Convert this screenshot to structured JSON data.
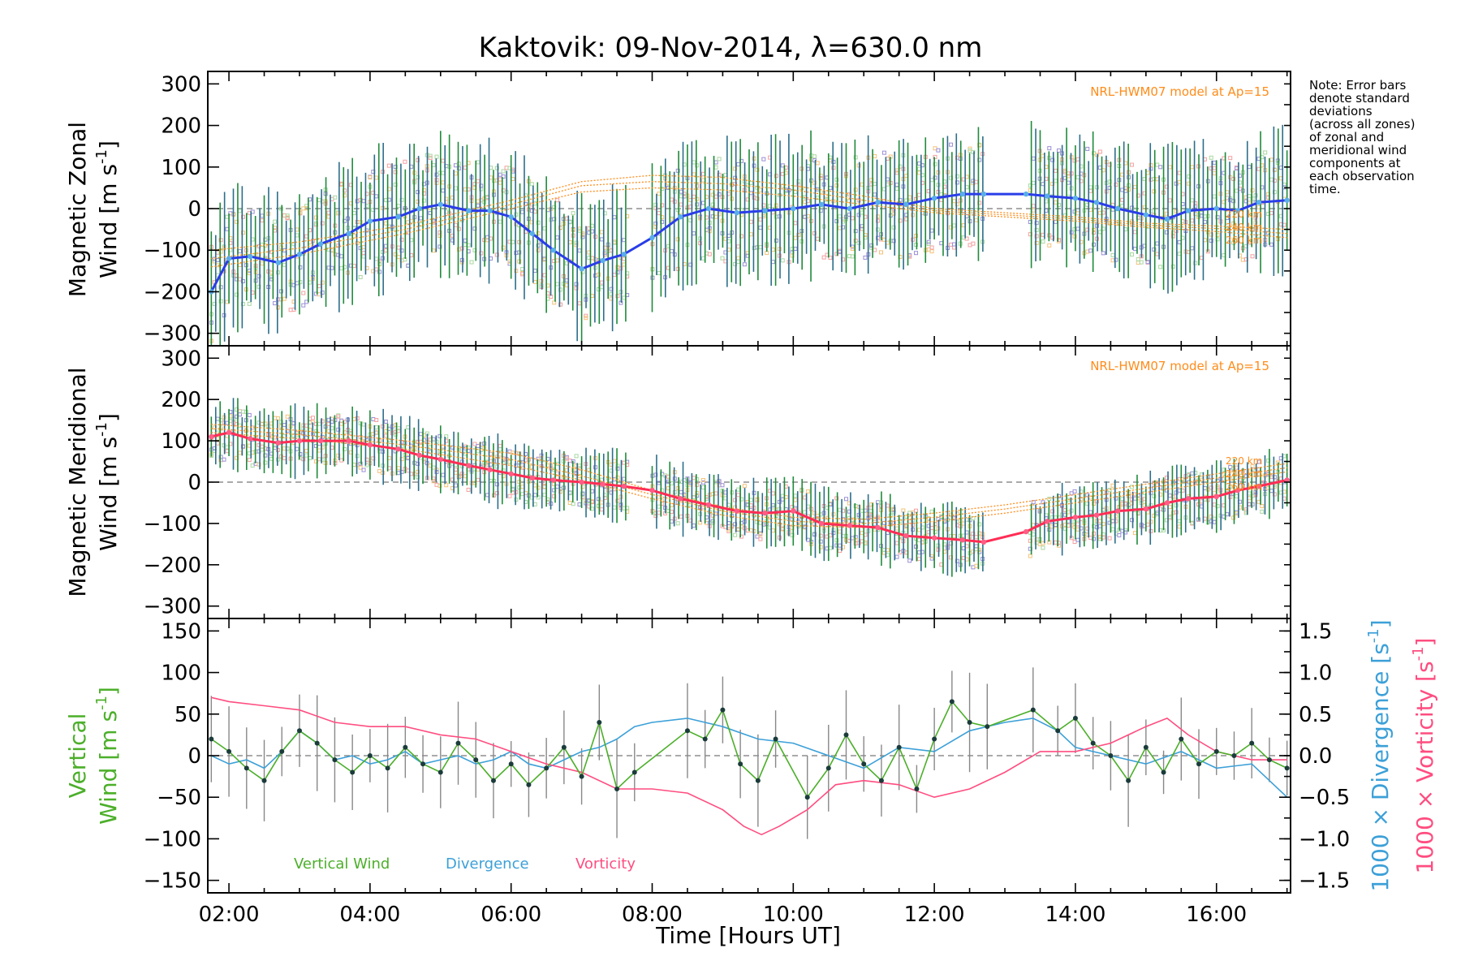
{
  "title": "Kaktovik: 09-Nov-2014, λ=630.0 nm",
  "note": [
    "Note: Error bars",
    "denote standard",
    "deviations",
    "(across all zones)",
    "of zonal and",
    "meridional wind",
    "components at",
    "each observation",
    "time."
  ],
  "x_axis": {
    "label": "Time [Hours UT]",
    "range": [
      1.7,
      17.05
    ],
    "ticks": [
      2,
      4,
      6,
      8,
      10,
      12,
      14,
      16
    ],
    "tick_labels": [
      "02:00",
      "04:00",
      "06:00",
      "08:00",
      "10:00",
      "12:00",
      "14:00",
      "16:00"
    ]
  },
  "colors": {
    "zonal_line": "#2a3de8",
    "zonal_points": "#5aaee8",
    "meridional_line": "#ff2d55",
    "meridional_points": "#ff5d85",
    "errorbar_a": "#2c6e8a",
    "errorbar_b": "#1f8a3a",
    "model": "#ff8c1a",
    "zone_a": "#9b8fd6",
    "zone_b": "#f4c27a",
    "zone_c": "#f4a0a0",
    "zone_d": "#a8d8a0",
    "vertical": "#4caf2a",
    "divergence": "#3ca0d8",
    "vorticity": "#ff4d80",
    "vertical_err": "#888888"
  },
  "panels": {
    "zonal": {
      "ylabel_line1": "Magnetic Zonal",
      "ylabel_line2": "Wind [m s",
      "ylabel_sup": "-1",
      "ylabel_end": "]",
      "yticks": [
        300,
        200,
        100,
        0,
        -100,
        -200,
        -300
      ],
      "tick_labels": [
        "300",
        "200",
        "100",
        "0",
        "−100",
        "−200",
        "−300"
      ],
      "model_label": "NRL-HWM07 model at Ap=15",
      "altitude_labels": [
        "220 km",
        "240 km",
        "260 km"
      ]
    },
    "meridional": {
      "ylabel_line1": "Magnetic Meridional",
      "ylabel_line2": "Wind [m s",
      "ylabel_sup": "-1",
      "ylabel_end": "]",
      "yticks": [
        300,
        200,
        100,
        0,
        -100,
        -200,
        -300
      ],
      "tick_labels": [
        "300",
        "200",
        "100",
        "0",
        "−100",
        "−200",
        "−300"
      ],
      "model_label": "NRL-HWM07 model at Ap=15",
      "altitude_labels": [
        "220 km",
        "240 km",
        "260 km"
      ]
    },
    "vertical": {
      "ylabel_line1": "Vertical",
      "ylabel_line2": "Wind [m s",
      "ylabel_sup": "-1",
      "ylabel_end": "]",
      "yticks": [
        150,
        100,
        50,
        0,
        -50,
        -100,
        -150
      ],
      "tick_labels": [
        "150",
        "100",
        "50",
        "0",
        "−50",
        "−100",
        "−150"
      ],
      "right_ticks": [
        1.5,
        1.0,
        0.5,
        0.0,
        -0.5,
        -1.0,
        -1.5
      ],
      "right_tick_labels": [
        "1.5",
        "1.0",
        "0.5",
        "0.0",
        "−0.5",
        "−1.0",
        "−1.5"
      ],
      "right_label_div": "1000 × Divergence [s",
      "right_label_vort": "1000 × Vorticity [s",
      "right_label_sup": "-1",
      "right_label_end": "]",
      "legend": [
        "Vertical Wind",
        "Divergence",
        "Vorticity"
      ]
    }
  },
  "chart_data": [
    {
      "type": "line",
      "name": "zonal",
      "ylim": [
        -330,
        330
      ],
      "x": [
        1.75,
        2.0,
        2.3,
        2.7,
        3.0,
        3.3,
        3.7,
        4.0,
        4.4,
        4.7,
        5.0,
        5.4,
        5.7,
        6.0,
        6.3,
        6.6,
        7.0,
        7.3,
        7.6,
        8.0,
        8.4,
        8.8,
        9.2,
        9.6,
        10.0,
        10.4,
        10.8,
        11.2,
        11.6,
        12.0,
        12.4,
        12.7,
        13.3,
        13.6,
        14.0,
        14.3,
        14.6,
        15.0,
        15.3,
        15.6,
        16.0,
        16.3,
        16.6,
        17.0
      ],
      "y": [
        -200,
        -120,
        -115,
        -130,
        -110,
        -85,
        -60,
        -30,
        -20,
        0,
        10,
        -5,
        -5,
        -20,
        -60,
        -100,
        -145,
        -125,
        -110,
        -70,
        -20,
        0,
        -10,
        -5,
        0,
        10,
        0,
        15,
        10,
        25,
        35,
        35,
        35,
        30,
        25,
        15,
        0,
        -15,
        -25,
        -5,
        0,
        -5,
        15,
        20
      ]
    },
    {
      "type": "line",
      "name": "meridional",
      "ylim": [
        -330,
        330
      ],
      "x": [
        1.75,
        2.0,
        2.3,
        2.7,
        3.0,
        3.3,
        3.7,
        4.0,
        4.4,
        4.7,
        5.0,
        5.4,
        5.7,
        6.0,
        6.3,
        6.6,
        7.0,
        7.3,
        7.6,
        8.0,
        8.4,
        8.8,
        9.2,
        9.6,
        10.0,
        10.4,
        10.8,
        11.2,
        11.6,
        12.0,
        12.4,
        12.7,
        13.3,
        13.6,
        14.0,
        14.3,
        14.6,
        15.0,
        15.3,
        15.6,
        16.0,
        16.3,
        16.6,
        17.0
      ],
      "y": [
        110,
        120,
        105,
        95,
        100,
        100,
        100,
        90,
        80,
        65,
        55,
        40,
        30,
        20,
        10,
        5,
        0,
        -5,
        -10,
        -20,
        -40,
        -55,
        -70,
        -75,
        -70,
        -100,
        -105,
        -110,
        -130,
        -135,
        -140,
        -145,
        -120,
        -95,
        -85,
        -80,
        -70,
        -65,
        -50,
        -40,
        -35,
        -20,
        -10,
        5
      ]
    },
    {
      "type": "line",
      "name": "vertical",
      "ylim": [
        -165,
        165
      ],
      "x": [
        1.75,
        2.0,
        2.25,
        2.5,
        2.75,
        3.0,
        3.25,
        3.5,
        3.75,
        4.0,
        4.25,
        4.5,
        4.75,
        5.0,
        5.25,
        5.5,
        5.75,
        6.0,
        6.25,
        6.5,
        6.75,
        7.0,
        7.25,
        7.5,
        7.75,
        8.5,
        8.75,
        9.0,
        9.25,
        9.5,
        9.75,
        10.2,
        10.5,
        10.75,
        11.0,
        11.25,
        11.5,
        11.75,
        12.0,
        12.25,
        12.5,
        12.75,
        13.4,
        13.75,
        14.0,
        14.25,
        14.5,
        14.75,
        15.0,
        15.25,
        15.5,
        15.75,
        16.0,
        16.25,
        16.5,
        16.75,
        17.0
      ],
      "y": [
        20,
        5,
        -15,
        -30,
        5,
        30,
        15,
        -5,
        -20,
        0,
        -15,
        10,
        -10,
        -20,
        15,
        -5,
        -30,
        -10,
        -35,
        -15,
        10,
        -25,
        40,
        -40,
        -20,
        30,
        20,
        55,
        -10,
        -30,
        20,
        -50,
        -15,
        25,
        -10,
        -30,
        10,
        -40,
        20,
        65,
        40,
        35,
        55,
        30,
        45,
        15,
        0,
        -30,
        10,
        -20,
        20,
        -10,
        5,
        0,
        15,
        -5,
        -15
      ]
    },
    {
      "type": "line",
      "name": "divergence",
      "ylim": [
        -1.65,
        1.65
      ],
      "x": [
        1.75,
        2.0,
        2.25,
        2.5,
        2.75,
        3.0,
        3.25,
        3.5,
        3.75,
        4.0,
        4.25,
        4.5,
        4.75,
        5.0,
        5.25,
        5.5,
        5.75,
        6.0,
        6.25,
        6.5,
        6.75,
        7.0,
        7.25,
        7.5,
        7.75,
        8.0,
        8.5,
        9.0,
        9.5,
        10.0,
        10.5,
        11.0,
        11.5,
        12.0,
        12.5,
        13.0,
        13.4,
        13.75,
        14.0,
        14.5,
        15.0,
        15.5,
        16.0,
        16.5,
        17.0
      ],
      "y": [
        0.0,
        -0.1,
        -0.05,
        -0.15,
        0.05,
        0.3,
        0.15,
        -0.05,
        0.0,
        -0.1,
        -0.05,
        0.05,
        -0.1,
        -0.05,
        0.0,
        -0.1,
        -0.05,
        0.05,
        -0.1,
        -0.15,
        -0.05,
        0.05,
        0.1,
        0.2,
        0.35,
        0.4,
        0.45,
        0.35,
        0.2,
        0.15,
        0.0,
        -0.15,
        0.1,
        0.05,
        0.3,
        0.4,
        0.45,
        0.3,
        0.1,
        0.0,
        -0.1,
        0.05,
        -0.15,
        -0.1,
        -0.5
      ]
    },
    {
      "type": "line",
      "name": "vorticity",
      "ylim": [
        -1.65,
        1.65
      ],
      "x": [
        1.75,
        2.0,
        2.5,
        3.0,
        3.5,
        4.0,
        4.5,
        5.0,
        5.5,
        6.0,
        6.5,
        7.0,
        7.5,
        8.0,
        8.5,
        9.0,
        9.3,
        9.55,
        9.8,
        10.2,
        10.6,
        11.0,
        11.5,
        12.0,
        12.5,
        13.0,
        13.5,
        14.0,
        14.5,
        15.0,
        15.3,
        15.6,
        16.0,
        16.5,
        17.0
      ],
      "y": [
        0.7,
        0.65,
        0.6,
        0.55,
        0.4,
        0.35,
        0.35,
        0.25,
        0.2,
        0.05,
        -0.1,
        -0.2,
        -0.4,
        -0.4,
        -0.45,
        -0.65,
        -0.85,
        -0.95,
        -0.85,
        -0.65,
        -0.35,
        -0.3,
        -0.35,
        -0.5,
        -0.4,
        -0.2,
        0.05,
        0.05,
        0.15,
        0.35,
        0.45,
        0.25,
        0.05,
        -0.05,
        -0.05
      ]
    },
    {
      "type": "line",
      "name": "model_zonal",
      "ylim": [
        -330,
        330
      ],
      "x": [
        1.75,
        3.0,
        4.5,
        6.0,
        7.0,
        8.0,
        9.0,
        10.0,
        11.0,
        12.0,
        13.0,
        14.0,
        15.0,
        16.0,
        17.0
      ],
      "series": [
        {
          "values": [
            -140,
            -110,
            -60,
            0,
            40,
            50,
            45,
            30,
            10,
            -10,
            -20,
            -30,
            -45,
            -55,
            -70
          ]
        },
        {
          "values": [
            -120,
            -95,
            -50,
            10,
            55,
            65,
            60,
            45,
            20,
            -5,
            -15,
            -25,
            -40,
            -48,
            -60
          ]
        },
        {
          "values": [
            -100,
            -80,
            -40,
            20,
            65,
            80,
            75,
            55,
            30,
            0,
            -10,
            -20,
            -35,
            -42,
            -50
          ]
        }
      ]
    },
    {
      "type": "line",
      "name": "model_meridional",
      "ylim": [
        -330,
        330
      ],
      "x": [
        1.75,
        3.0,
        4.5,
        6.0,
        7.0,
        8.0,
        9.0,
        10.0,
        11.0,
        12.0,
        13.0,
        14.0,
        15.0,
        16.0,
        17.0
      ],
      "series": [
        {
          "values": [
            140,
            125,
            100,
            70,
            30,
            -20,
            -60,
            -85,
            -90,
            -75,
            -55,
            -30,
            -5,
            20,
            45
          ]
        },
        {
          "values": [
            130,
            115,
            90,
            55,
            15,
            -30,
            -70,
            -95,
            -100,
            -85,
            -65,
            -40,
            -15,
            10,
            35
          ]
        },
        {
          "values": [
            120,
            105,
            80,
            40,
            5,
            -40,
            -80,
            -105,
            -110,
            -95,
            -75,
            -50,
            -25,
            0,
            25
          ]
        }
      ]
    }
  ]
}
